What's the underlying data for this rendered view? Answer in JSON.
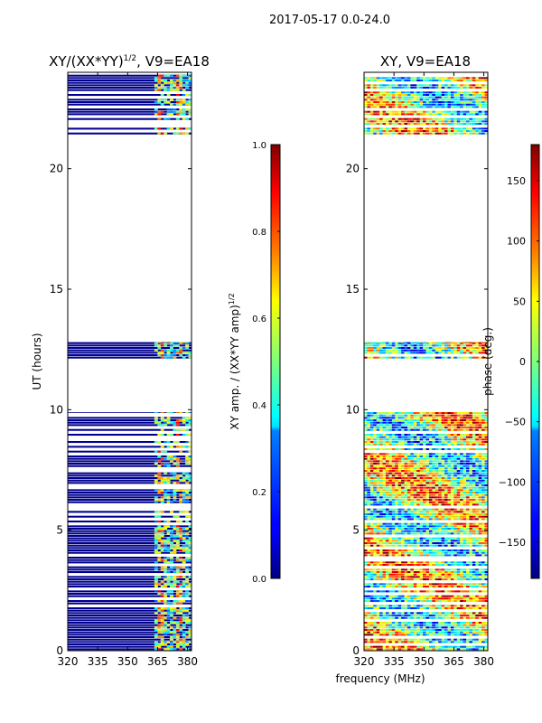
{
  "figure": {
    "suptitle": "2017-05-17 0.0-24.0",
    "shared_xlabel": "frequency (MHz)"
  },
  "chart_data": [
    {
      "type": "heatmap",
      "title_main": "XY/(XX*YY)",
      "title_sup": "1/2",
      "title_tail": ", V9=EA18",
      "ylabel": "UT (hours)",
      "xlim": [
        320,
        382
      ],
      "ylim": [
        0,
        24
      ],
      "x_ticks": [
        320,
        335,
        350,
        365,
        380
      ],
      "y_ticks": [
        0,
        5,
        10,
        15,
        20
      ],
      "data_bands_hours": [
        [
          0,
          9.9
        ],
        [
          12.1,
          12.8
        ],
        [
          21.4,
          23.9
        ]
      ],
      "colorbar": {
        "label_main": "XY amp. / (XX*YY amp)",
        "label_sup": "1/2",
        "range": [
          0.0,
          1.0
        ],
        "ticks": [
          "0.0",
          "0.2",
          "0.4",
          "0.6",
          "0.8",
          "1.0"
        ],
        "tick_values": [
          0.0,
          0.2,
          0.4,
          0.6,
          0.8,
          1.0
        ]
      }
    },
    {
      "type": "heatmap",
      "title_main": "XY, V9=EA18",
      "title_sup": "",
      "title_tail": "",
      "ylabel": "",
      "xlim": [
        320,
        382
      ],
      "ylim": [
        0,
        24
      ],
      "x_ticks": [
        320,
        335,
        350,
        365,
        380
      ],
      "y_ticks": [
        0,
        5,
        10,
        15,
        20
      ],
      "data_bands_hours": [
        [
          0,
          9.9
        ],
        [
          12.1,
          12.8
        ],
        [
          21.4,
          23.9
        ]
      ],
      "colorbar": {
        "label_main": "phase (deg.)",
        "label_sup": "",
        "range": [
          -180,
          180
        ],
        "ticks": [
          "−150",
          "−100",
          "−50",
          "0",
          "50",
          "100",
          "150"
        ],
        "tick_values": [
          -150,
          -100,
          -50,
          0,
          50,
          100,
          150
        ]
      }
    }
  ],
  "colors": {
    "jet_dark_blue": "#00008f",
    "axis": "#000000"
  }
}
